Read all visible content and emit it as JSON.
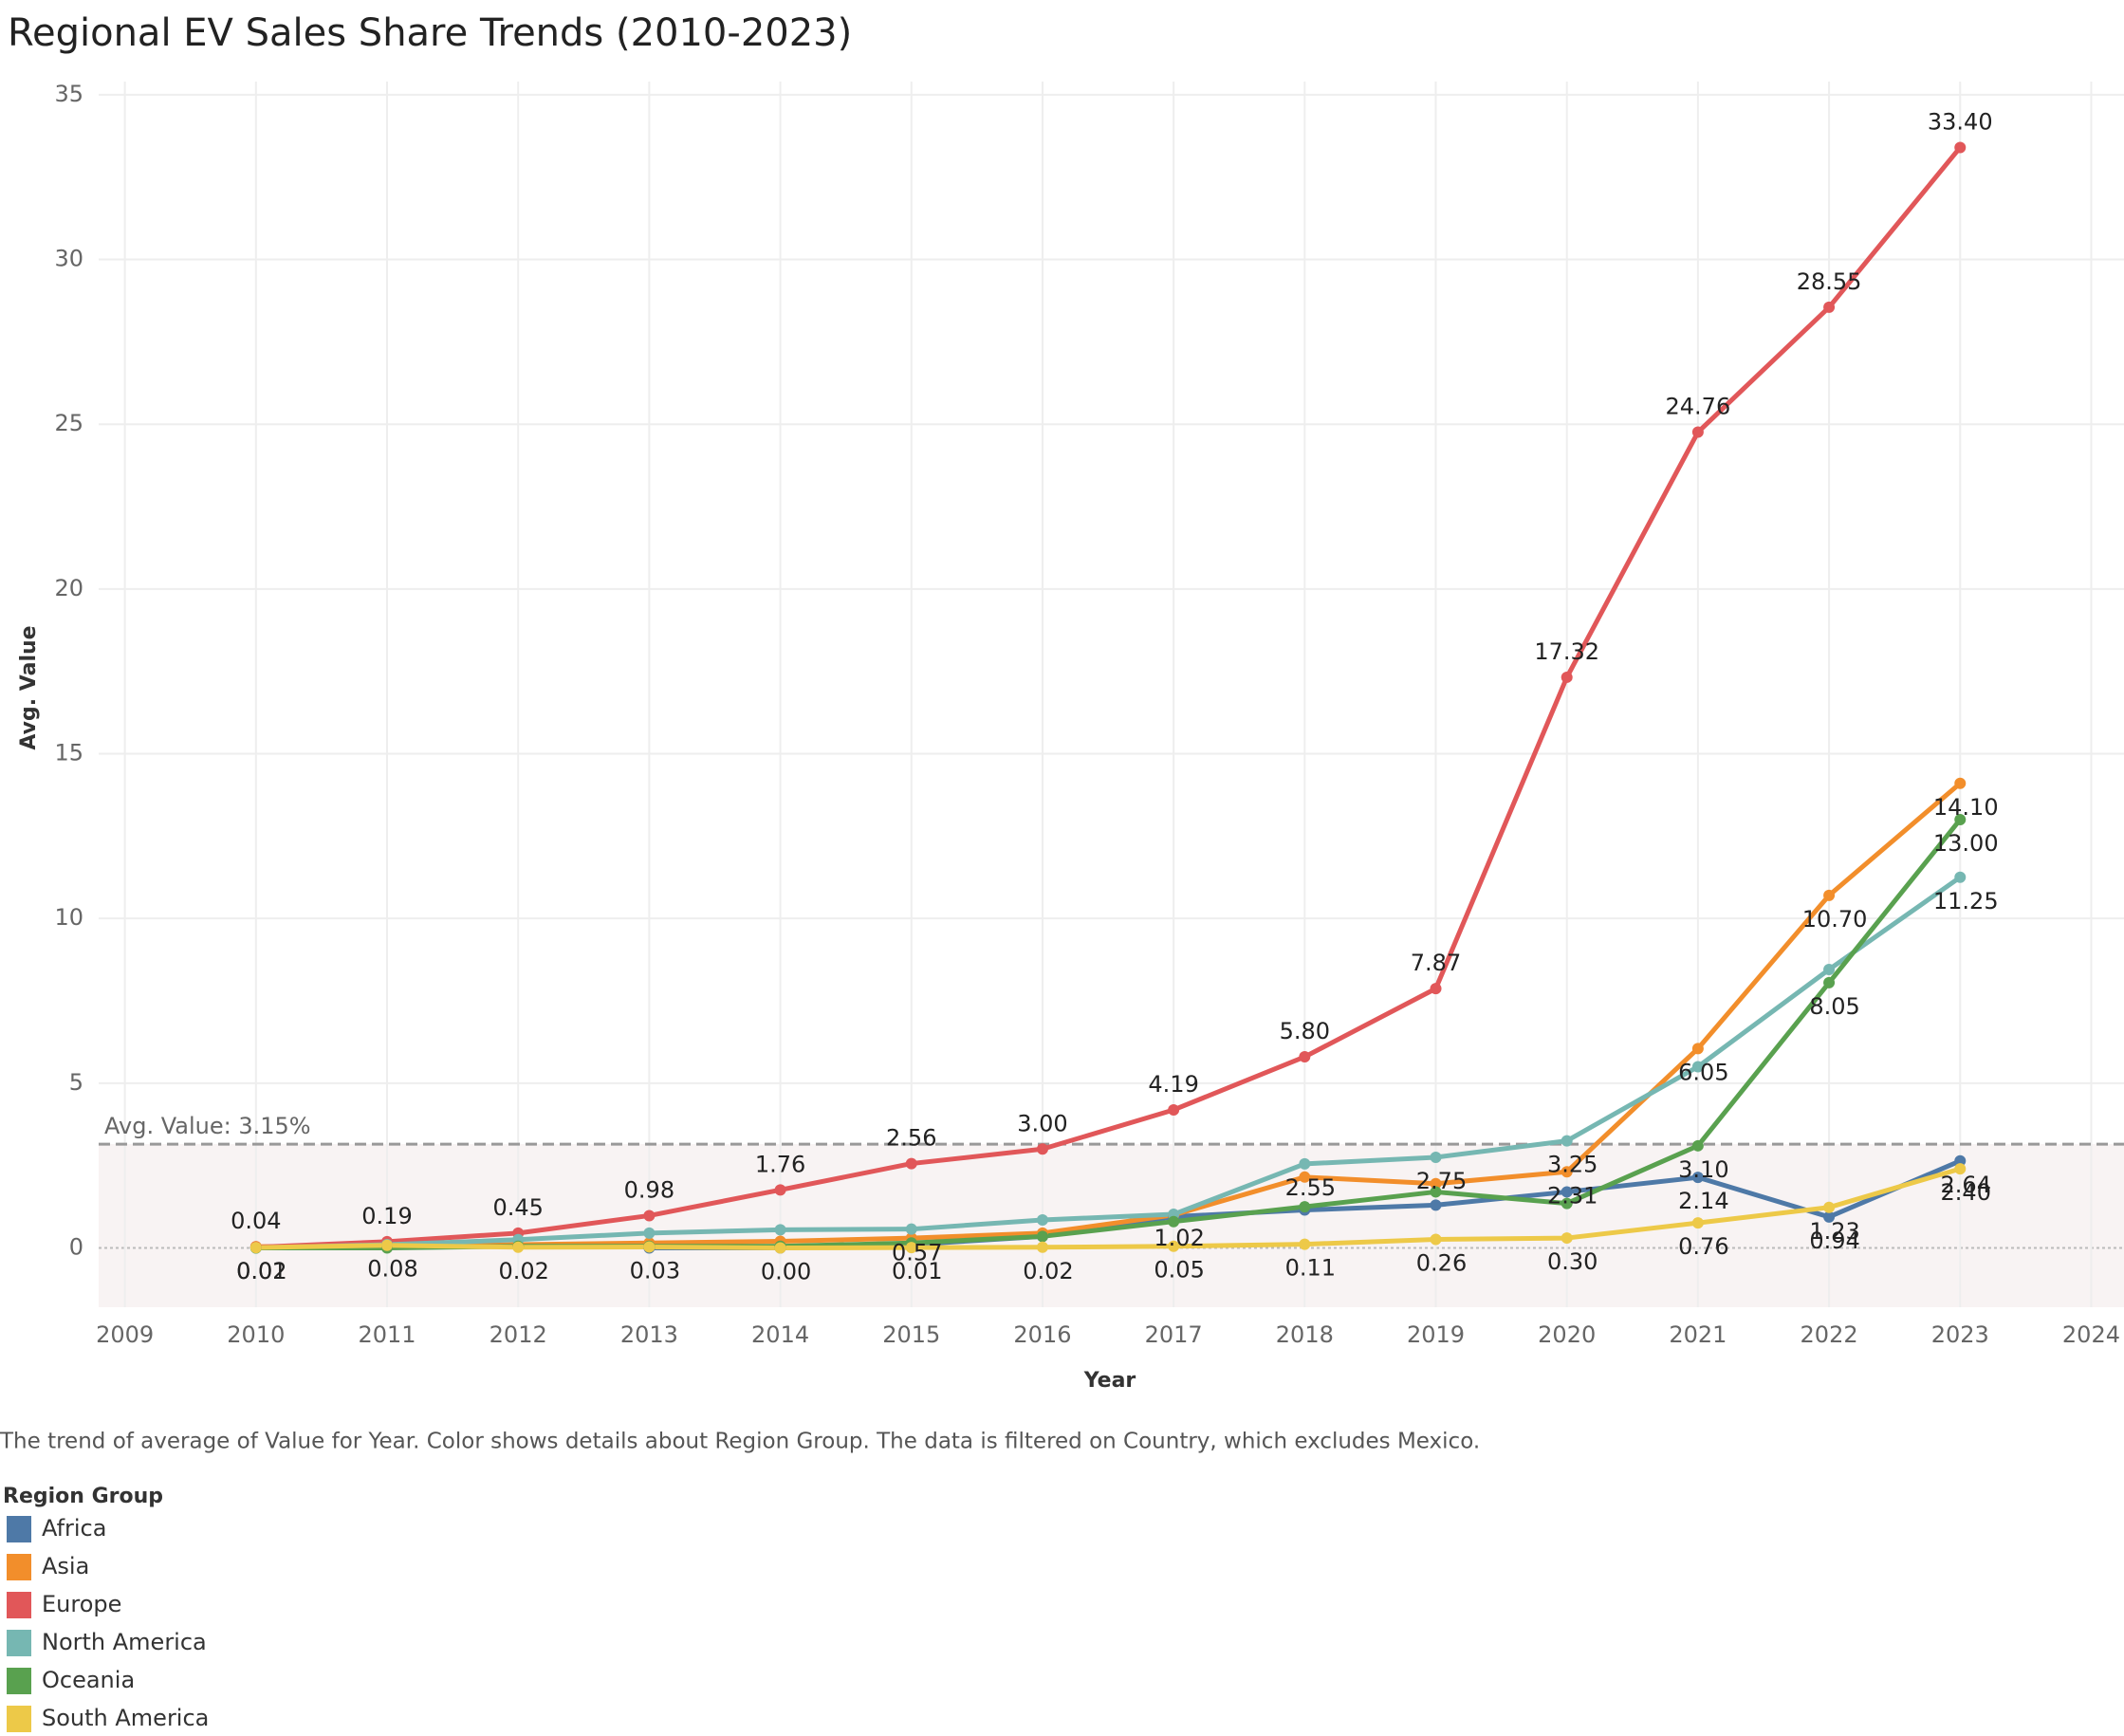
{
  "chart_data": {
    "type": "line",
    "title": "Regional EV Sales Share Trends (2010-2023)",
    "x_label": "Year",
    "y_label": "Avg. Value",
    "caption": "The trend of average of Value for Year.  Color shows details about Region Group. The data is filtered on Country, which excludes Mexico.",
    "legend_title": "Region Group",
    "x": [
      2010,
      2011,
      2012,
      2013,
      2014,
      2015,
      2016,
      2017,
      2018,
      2019,
      2020,
      2021,
      2022,
      2023
    ],
    "xlim": [
      2008.8,
      2024.25
    ],
    "xticks": [
      2009,
      2010,
      2011,
      2012,
      2013,
      2014,
      2015,
      2016,
      2017,
      2018,
      2019,
      2020,
      2021,
      2022,
      2023,
      2024
    ],
    "ylim": [
      -1.8,
      35.4
    ],
    "yticks": [
      0,
      5,
      10,
      15,
      20,
      25,
      30,
      35
    ],
    "grid": true,
    "reference_line": {
      "value": 3.15,
      "label": "Avg. Value: 3.15%"
    },
    "series": [
      {
        "name": "Africa",
        "color": "#4e79a7",
        "values": [
          null,
          null,
          null,
          0,
          0,
          0.1,
          0.35,
          0.95,
          1.15,
          1.3,
          1.7,
          2.14,
          0.94,
          2.64
        ],
        "value_labels": [
          null,
          null,
          null,
          null,
          null,
          null,
          null,
          null,
          null,
          null,
          null,
          "2.14",
          "0.94",
          "2.64"
        ]
      },
      {
        "name": "Asia",
        "color": "#f28e2b",
        "values": [
          0.04,
          0.05,
          0.1,
          0.15,
          0.2,
          0.3,
          0.45,
          1.0,
          2.15,
          1.95,
          2.31,
          6.05,
          10.7,
          14.1
        ],
        "value_labels": [
          "0.04",
          null,
          null,
          null,
          null,
          null,
          null,
          null,
          null,
          null,
          "2.31",
          "6.05",
          "10.70",
          "14.10"
        ]
      },
      {
        "name": "Europe",
        "color": "#e15759",
        "values": [
          0.02,
          0.19,
          0.45,
          0.98,
          1.76,
          2.56,
          3.0,
          4.19,
          5.8,
          7.87,
          17.32,
          24.76,
          28.55,
          33.4
        ],
        "value_labels": [
          "0.02",
          "0.19",
          "0.45",
          "0.98",
          "1.76",
          "2.56",
          "3.00",
          "4.19",
          "5.80",
          "7.87",
          "17.32",
          "24.76",
          "28.55",
          "33.40"
        ]
      },
      {
        "name": "North America",
        "color": "#76b7b2",
        "values": [
          0,
          0.1,
          0.25,
          0.45,
          0.55,
          0.57,
          0.85,
          1.02,
          2.55,
          2.75,
          3.25,
          5.5,
          8.45,
          11.25
        ],
        "value_labels": [
          null,
          null,
          null,
          null,
          null,
          "0.57",
          null,
          "1.02",
          "2.55",
          "2.75",
          "3.25",
          null,
          null,
          "11.25"
        ]
      },
      {
        "name": "Oceania",
        "color": "#59a14f",
        "values": [
          0,
          0,
          0.05,
          0.05,
          0.05,
          0.15,
          0.35,
          0.8,
          1.25,
          1.7,
          1.35,
          3.1,
          8.05,
          13.0
        ],
        "value_labels": [
          null,
          null,
          null,
          null,
          null,
          null,
          null,
          null,
          null,
          null,
          null,
          "3.10",
          "8.05",
          "13.00"
        ]
      },
      {
        "name": "South America",
        "color": "#edc948",
        "values": [
          0.01,
          0.08,
          0.02,
          0.03,
          0,
          0.01,
          0.02,
          0.05,
          0.11,
          0.26,
          0.3,
          0.76,
          1.23,
          2.4
        ],
        "value_labels": [
          "0.01",
          "0.08",
          "0.02",
          "0.03",
          "0.00",
          "0.01",
          "0.02",
          "0.05",
          "0.11",
          "0.26",
          "0.30",
          "0.76",
          "1.23",
          "2.40"
        ]
      }
    ]
  }
}
